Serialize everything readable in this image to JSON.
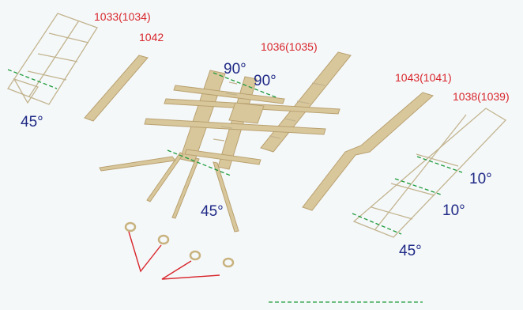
{
  "part_labels": {
    "p1033": "1033(1034)",
    "p1042": "1042",
    "p1036": "1036(1035)",
    "p1043": "1043(1041)",
    "p1038": "1038(1039)"
  },
  "angle_labels": {
    "left_45": "45°",
    "top_90a": "90°",
    "top_90b": "90°",
    "center_45": "45°",
    "right_10a": "10°",
    "right_10b": "10°",
    "right_45": "45°"
  },
  "colors": {
    "part_label": "#d8262c",
    "angle_label": "#1f2a86",
    "fold_line": "#1d9a3a",
    "etched_brass": "#d9c79c"
  }
}
